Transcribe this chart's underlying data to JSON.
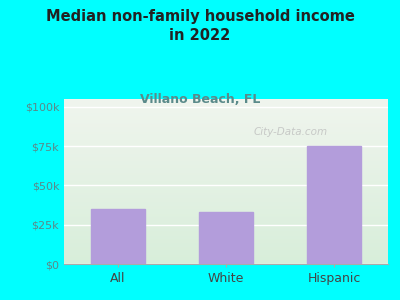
{
  "title": "Median non-family household income\nin 2022",
  "subtitle": "Villano Beach, FL",
  "categories": [
    "All",
    "White",
    "Hispanic"
  ],
  "values": [
    35000,
    33000,
    75000
  ],
  "bar_color": "#b39ddb",
  "yticks": [
    0,
    25000,
    50000,
    75000,
    100000
  ],
  "ytick_labels": [
    "$0",
    "$25k",
    "$50k",
    "$75k",
    "$100k"
  ],
  "ymax": 105000,
  "bg_color": "#00FFFF",
  "plot_bg_top": "#f0f5ee",
  "plot_bg_bottom": "#d8eeda",
  "title_color": "#222222",
  "subtitle_color": "#5a8a8a",
  "tick_label_color": "#5a8a8a",
  "xtick_label_color": "#444444",
  "watermark": "City-Data.com",
  "watermark_color": "#bbbbbb"
}
